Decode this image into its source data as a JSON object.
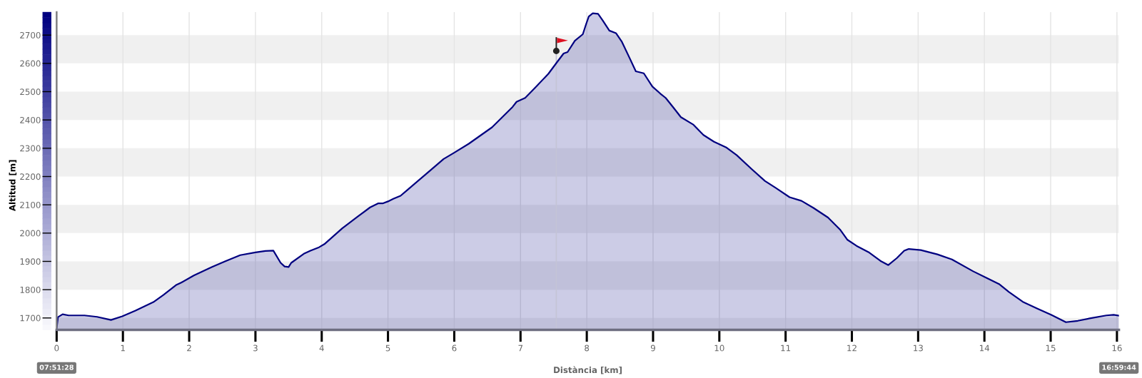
{
  "chart_data": {
    "type": "area",
    "xlabel": "Distància [km]",
    "ylabel": "Altitud [m]",
    "xlim": [
      0,
      16.03
    ],
    "ylim": [
      1658,
      2781
    ],
    "xticks": [
      0,
      1,
      2,
      3,
      4,
      5,
      6,
      7,
      8,
      9,
      10,
      11,
      12,
      13,
      14,
      15,
      16
    ],
    "yticks": [
      1700,
      1800,
      1900,
      2000,
      2100,
      2200,
      2300,
      2400,
      2500,
      2600,
      2700
    ],
    "grid": "x",
    "bands": [
      {
        "axis": "y",
        "from": 1658,
        "to": 1700,
        "color": "#f0f0f0"
      },
      {
        "axis": "y",
        "from": 1800,
        "to": 1900,
        "color": "#f0f0f0"
      },
      {
        "axis": "y",
        "from": 2000,
        "to": 2100,
        "color": "#f0f0f0"
      },
      {
        "axis": "y",
        "from": 2200,
        "to": 2300,
        "color": "#f0f0f0"
      },
      {
        "axis": "y",
        "from": 2400,
        "to": 2500,
        "color": "#f0f0f0"
      },
      {
        "axis": "y",
        "from": 2600,
        "to": 2700,
        "color": "#f0f0f0"
      }
    ],
    "series": [
      {
        "color": "#000080",
        "x": [
          0,
          0.02,
          0.09,
          0.18,
          0.42,
          0.61,
          0.82,
          0.99,
          1.19,
          1.46,
          1.61,
          1.8,
          1.88,
          2.07,
          2.34,
          2.54,
          2.77,
          3.0,
          3.15,
          3.27,
          3.38,
          3.44,
          3.5,
          3.54,
          3.73,
          3.83,
          3.96,
          4.04,
          4.31,
          4.54,
          4.73,
          4.85,
          4.92,
          5.0,
          5.08,
          5.19,
          5.28,
          5.57,
          5.84,
          5.99,
          6.22,
          6.57,
          6.88,
          6.94,
          7.07,
          7.22,
          7.42,
          7.55,
          7.65,
          7.71,
          7.82,
          7.94,
          7.99,
          8.03,
          8.09,
          8.17,
          8.24,
          8.34,
          8.44,
          8.53,
          8.65,
          8.74,
          8.86,
          8.99,
          9.11,
          9.19,
          9.3,
          9.42,
          9.61,
          9.76,
          9.92,
          10.11,
          10.26,
          10.49,
          10.69,
          10.85,
          11.06,
          11.24,
          11.42,
          11.64,
          11.82,
          11.93,
          12.07,
          12.25,
          12.43,
          12.55,
          12.68,
          12.79,
          12.86,
          13.04,
          13.29,
          13.51,
          13.83,
          14.04,
          14.22,
          14.37,
          14.58,
          14.8,
          15.01,
          15.23,
          15.41,
          15.62,
          15.84,
          15.95,
          16.03
        ],
        "values": [
          1662,
          1703,
          1713,
          1709,
          1709,
          1704,
          1693,
          1706,
          1726,
          1756,
          1781,
          1816,
          1825,
          1850,
          1880,
          1900,
          1922,
          1932,
          1937,
          1938,
          1895,
          1882,
          1880,
          1895,
          1927,
          1938,
          1950,
          1961,
          2017,
          2058,
          2091,
          2105,
          2105,
          2112,
          2121,
          2132,
          2150,
          2208,
          2262,
          2283,
          2316,
          2374,
          2446,
          2464,
          2478,
          2514,
          2563,
          2604,
          2635,
          2640,
          2680,
          2703,
          2739,
          2766,
          2777,
          2775,
          2752,
          2716,
          2707,
          2676,
          2617,
          2572,
          2565,
          2518,
          2493,
          2478,
          2446,
          2410,
          2383,
          2347,
          2323,
          2302,
          2276,
          2226,
          2184,
          2160,
          2127,
          2114,
          2089,
          2055,
          2013,
          1977,
          1955,
          1933,
          1902,
          1887,
          1912,
          1938,
          1944,
          1940,
          1925,
          1907,
          1865,
          1841,
          1820,
          1792,
          1757,
          1733,
          1711,
          1685,
          1690,
          1700,
          1709,
          1711,
          1708
        ]
      },
      {
        "type": "lollipop",
        "color": "#222222",
        "marker": "circle",
        "x": [
          7.54
        ],
        "values": [
          2644
        ]
      }
    ],
    "annotations": [
      "07:51:28",
      "16:59:44"
    ]
  }
}
